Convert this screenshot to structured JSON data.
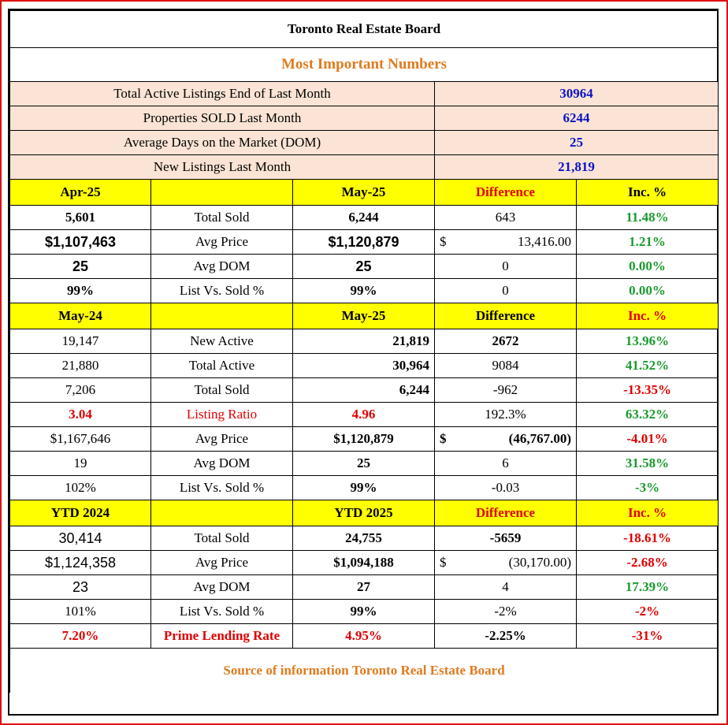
{
  "title": "Toronto Real Estate Board",
  "subtitle": "Most Important Numbers",
  "summary": [
    {
      "label": "Total Active Listings End of Last  Month",
      "value": "30964"
    },
    {
      "label": "Properties SOLD Last Month",
      "value": "6244"
    },
    {
      "label": "Average Days on the  Market (DOM)",
      "value": "25"
    },
    {
      "label": "New Listings Last Month",
      "value": "21,819"
    }
  ],
  "section1": {
    "header": {
      "prev": "Apr-25",
      "curr": "May-25",
      "diff": "Difference",
      "inc": "Inc. %"
    },
    "rows": [
      {
        "prev": "5,601",
        "label": "Total Sold",
        "curr": "6,244",
        "diff_sym": "",
        "diff": "643",
        "inc": "11.48%"
      },
      {
        "prev": "$1,107,463",
        "label": "Avg Price",
        "curr": "$1,120,879",
        "diff_sym": "$",
        "diff": "13,416.00",
        "inc": "1.21%"
      },
      {
        "prev": "25",
        "label": "Avg DOM",
        "curr": "25",
        "diff_sym": "",
        "diff": "0",
        "inc": "0.00%"
      },
      {
        "prev": "99%",
        "label": "List Vs. Sold %",
        "curr": "99%",
        "diff_sym": "",
        "diff": "0",
        "inc": "0.00%"
      }
    ]
  },
  "section2": {
    "header": {
      "prev": "May-24",
      "curr": "May-25",
      "diff": "Difference",
      "inc": "Inc. %"
    },
    "rows": [
      {
        "prev": "19,147",
        "label": "New Active",
        "curr": "21,819",
        "diff_sym": "",
        "diff": "2672",
        "inc": "13.96%"
      },
      {
        "prev": "21,880",
        "label": "Total Active",
        "curr": "30,964",
        "diff_sym": "",
        "diff": "9084",
        "inc": "41.52%"
      },
      {
        "prev": "7,206",
        "label": "Total Sold",
        "curr": "6,244",
        "diff_sym": "",
        "diff": "-962",
        "inc": "-13.35%"
      },
      {
        "prev": "3.04",
        "label": "Listing Ratio",
        "curr": "4.96",
        "diff_sym": "",
        "diff": "192.3%",
        "inc": "63.32%"
      },
      {
        "prev": "$1,167,646",
        "label": "Avg Price",
        "curr": "$1,120,879",
        "diff_sym": "$",
        "diff": "(46,767.00)",
        "inc": "-4.01%"
      },
      {
        "prev": "19",
        "label": "Avg DOM",
        "curr": "25",
        "diff_sym": "",
        "diff": "6",
        "inc": "31.58%"
      },
      {
        "prev": "102%",
        "label": "List Vs. Sold %",
        "curr": "99%",
        "diff_sym": "",
        "diff": "-0.03",
        "inc": "-3%"
      }
    ]
  },
  "section3": {
    "header": {
      "prev": "YTD 2024",
      "curr": "YTD 2025",
      "diff": "Difference",
      "inc": "Inc. %"
    },
    "rows": [
      {
        "prev": "30,414",
        "label": "Total Sold",
        "curr": "24,755",
        "diff_sym": "",
        "diff": "-5659",
        "inc": "-18.61%"
      },
      {
        "prev": "$1,124,358",
        "label": "Avg Price",
        "curr": "$1,094,188",
        "diff_sym": "$",
        "diff": "(30,170.00)",
        "inc": "-2.68%"
      },
      {
        "prev": "23",
        "label": "Avg DOM",
        "curr": "27",
        "diff_sym": "",
        "diff": "4",
        "inc": "17.39%"
      },
      {
        "prev": "101%",
        "label": "List Vs. Sold %",
        "curr": "99%",
        "diff_sym": "",
        "diff": "-2%",
        "inc": "-2%"
      },
      {
        "prev": "7.20%",
        "label": "Prime Lending Rate",
        "curr": "4.95%",
        "diff_sym": "",
        "diff": "-2.25%",
        "inc": "-31%"
      }
    ]
  },
  "footer": "Source of information Toronto Real Estate Board",
  "colors": {
    "orange": "#e07b1e",
    "red": "#e00000",
    "green": "#1a9a2e",
    "blue": "#0a14c8",
    "yellow": "#ffff00",
    "pink": "#fbe4d5"
  }
}
